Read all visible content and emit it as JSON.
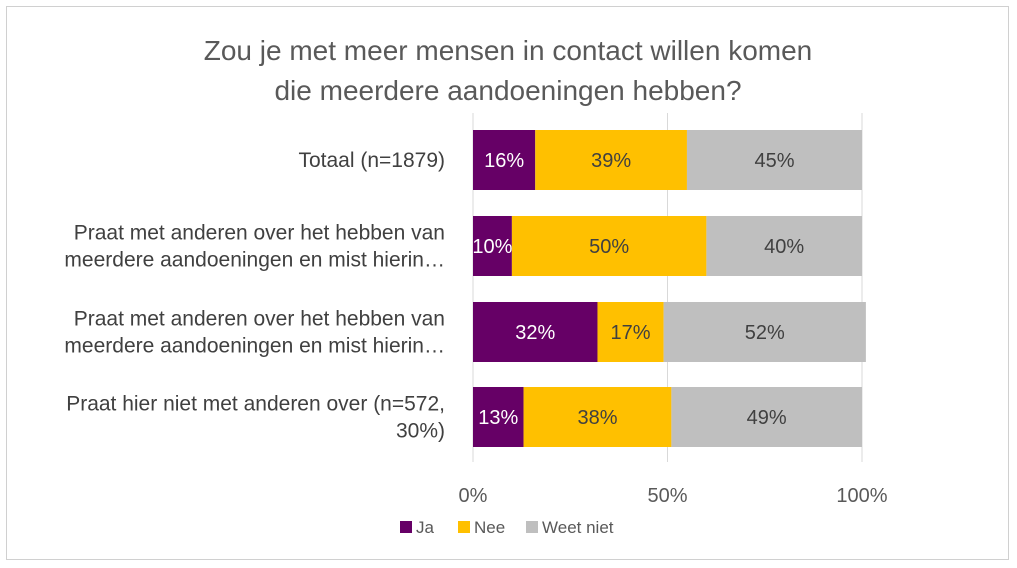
{
  "chart_data": {
    "type": "bar",
    "orientation": "horizontal",
    "stacked": true,
    "percent_stacked": true,
    "title": [
      "Zou je met meer mensen in contact willen komen",
      "die meerdere aandoeningen hebben?"
    ],
    "categories": [
      [
        "Totaal (n=1879)"
      ],
      [
        "Praat met anderen over het hebben van",
        "meerdere aandoeningen en mist hierin…"
      ],
      [
        "Praat met anderen over het hebben van",
        "meerdere aandoeningen en mist hierin…"
      ],
      [
        "Praat hier niet met anderen over (n=572,",
        "30%)"
      ]
    ],
    "series": [
      {
        "name": "Ja",
        "color": "#660066",
        "label_color": "#ffffff",
        "values": [
          16,
          10,
          32,
          13
        ],
        "labels": [
          "16%",
          "10%",
          "32%",
          "13%"
        ]
      },
      {
        "name": "Nee",
        "color": "#ffc000",
        "label_color": "#404040",
        "values": [
          39,
          50,
          17,
          38
        ],
        "labels": [
          "39%",
          "50%",
          "17%",
          "38%"
        ]
      },
      {
        "name": "Weet niet",
        "color": "#bfbfbf",
        "label_color": "#404040",
        "values": [
          45,
          40,
          52,
          49
        ],
        "labels": [
          "45%",
          "40%",
          "52%",
          "49%"
        ]
      }
    ],
    "xlim": [
      0,
      100
    ],
    "xticks": [
      0,
      50,
      100
    ],
    "xtick_labels": [
      "0%",
      "50%",
      "100%"
    ],
    "grid": true,
    "legend_position": "bottom"
  }
}
